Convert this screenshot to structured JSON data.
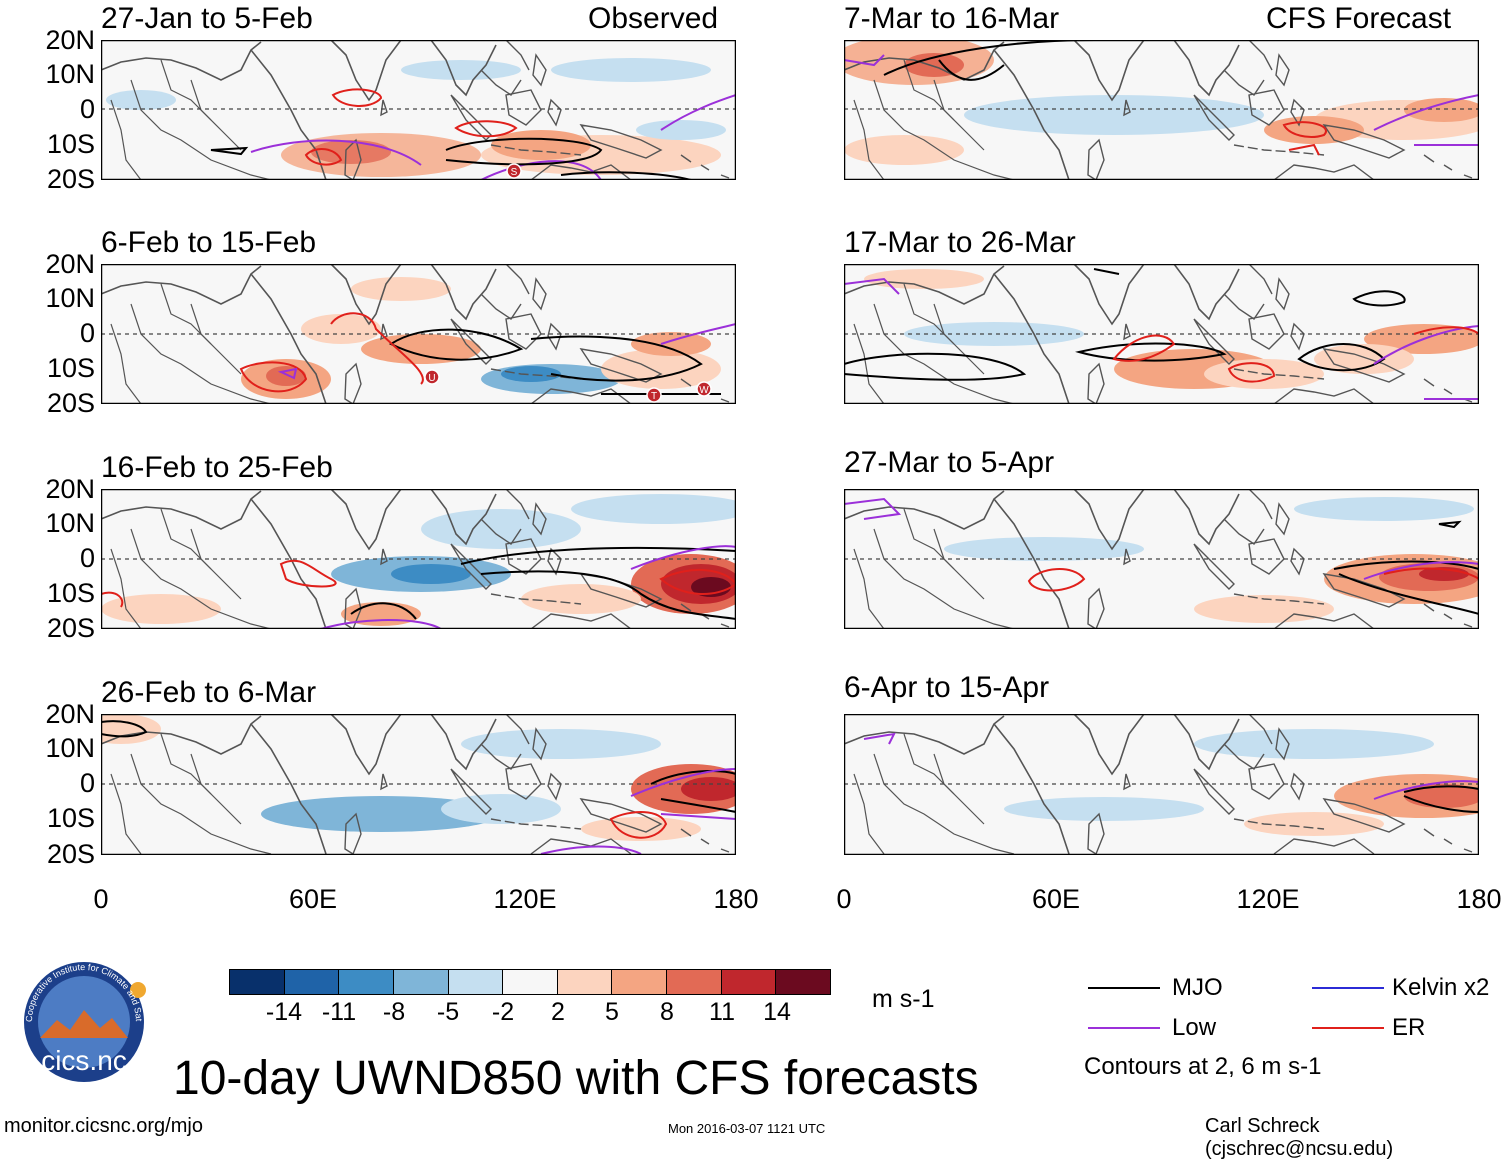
{
  "figure": {
    "title": "10-day UWND850 with CFS forecasts",
    "left_header": "Observed",
    "right_header": "CFS Forecast",
    "lat_labels": [
      "20N",
      "10N",
      "0",
      "10S",
      "20S"
    ],
    "lon_labels": [
      "0",
      "60E",
      "120E",
      "180"
    ],
    "units": "m s-1",
    "colorbar_labels": [
      "-14",
      "-11",
      "-8",
      "-5",
      "-2",
      "2",
      "5",
      "8",
      "11",
      "14"
    ],
    "colorbar_colors": [
      "#08306b",
      "#1f63a8",
      "#3d8cc4",
      "#7fb5d8",
      "#c5dff0",
      "#f7f7f7",
      "#fcd4bf",
      "#f4a582",
      "#e26a55",
      "#c0272d",
      "#6b0a1f"
    ],
    "source_url": "monitor.cicsnc.org/mjo",
    "timestamp": "Mon 2016-03-07 1121 UTC",
    "author": "Carl Schreck (cjschrec@ncsu.edu)",
    "contour_note": "Contours at 2, 6 m s-1",
    "logo_text": "cics.nc",
    "logo_ring_text": "Cooperative Institute for Climate and Satellites"
  },
  "legend": [
    {
      "label": "MJO",
      "color": "#000000"
    },
    {
      "label": "Kelvin x2",
      "color": "#2b2bd6"
    },
    {
      "label": "Low",
      "color": "#9b30d9"
    },
    {
      "label": "ER",
      "color": "#e0201b"
    }
  ],
  "panels": [
    {
      "id": "p1",
      "title": "27-Jan to 5-Feb",
      "markers": [
        "S"
      ]
    },
    {
      "id": "p2",
      "title": "6-Feb to 15-Feb",
      "markers": [
        "U",
        "T",
        "W"
      ]
    },
    {
      "id": "p3",
      "title": "16-Feb to 25-Feb",
      "markers": []
    },
    {
      "id": "p4",
      "title": "26-Feb to 6-Mar",
      "markers": []
    },
    {
      "id": "p5",
      "title": "7-Mar to 16-Mar",
      "markers": []
    },
    {
      "id": "p6",
      "title": "17-Mar to 26-Mar",
      "markers": []
    },
    {
      "id": "p7",
      "title": "27-Mar to 5-Apr",
      "markers": []
    },
    {
      "id": "p8",
      "title": "6-Apr to 15-Apr",
      "markers": []
    }
  ]
}
